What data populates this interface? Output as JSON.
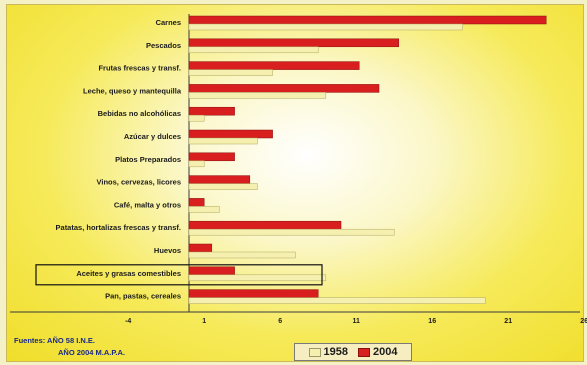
{
  "chart_data": {
    "type": "bar",
    "orientation": "horizontal",
    "categories": [
      "Carnes",
      "Pescados",
      "Frutas frescas y transf.",
      "Leche, queso y mantequilla",
      "Bebidas no alcohólicas",
      "Azúcar y dulces",
      "Platos Preparados",
      "Vinos, cervezas, licores",
      "Café, malta y otros",
      "Patatas, hortalizas frescas y transf.",
      "Huevos",
      "Aceites y grasas comestibles",
      "Pan, pastas, cereales"
    ],
    "series": [
      {
        "name": "1958",
        "color": "#f6f0b0",
        "values": [
          18.0,
          8.5,
          5.5,
          9.0,
          1.0,
          4.5,
          1.0,
          4.5,
          2.0,
          13.5,
          7.0,
          9.0,
          19.5
        ]
      },
      {
        "name": "2004",
        "color": "#d81e1e",
        "values": [
          23.5,
          13.8,
          11.2,
          12.5,
          3.0,
          5.5,
          3.0,
          4.0,
          1.0,
          10.0,
          1.5,
          3.0,
          8.5
        ]
      }
    ],
    "xticks": [
      "-4",
      "1",
      "6",
      "11",
      "16",
      "21",
      "26"
    ],
    "xlim": [
      -4,
      26
    ],
    "highlighted_category": "Aceites y grasas comestibles",
    "grid": false,
    "legend_position": "bottom"
  },
  "source": {
    "line1": "Fuentes: AÑO  58  I.N.E.",
    "line2": "AÑO 2004 M.A.P.A."
  },
  "legend": {
    "label_1958": "1958",
    "label_2004": "2004",
    "color_1958": "#f6f0b0",
    "color_2004": "#d81e1e"
  }
}
